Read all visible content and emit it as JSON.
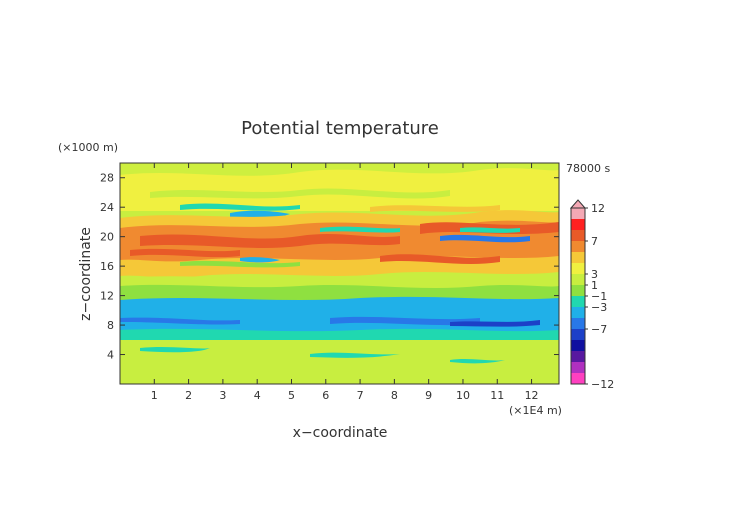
{
  "chart_data": {
    "type": "heatmap",
    "title": "Potential temperature",
    "xlabel": "x−coordinate",
    "ylabel": "z−coordinate",
    "x_unit": "(×1E4 m)",
    "y_unit": "(×1000 m)",
    "time_label": "78000 s",
    "xlim": [
      0,
      12.8
    ],
    "ylim": [
      0,
      30
    ],
    "x_ticks": [
      "1",
      "2",
      "3",
      "4",
      "5",
      "6",
      "7",
      "8",
      "9",
      "10",
      "11",
      "12"
    ],
    "y_ticks": [
      "4",
      "8",
      "12",
      "16",
      "20",
      "24",
      "28"
    ],
    "colorbar": {
      "labels": [
        "12",
        "7",
        "3",
        "1",
        "−1",
        "−3",
        "−7",
        "−12"
      ],
      "colors": [
        "#f4a8b4",
        "#ff2020",
        "#e85a28",
        "#f08a30",
        "#f5c838",
        "#f0f040",
        "#c8ee40",
        "#8fe040",
        "#20d8b0",
        "#20b0e8",
        "#2878e8",
        "#1c40c8",
        "#1010a0",
        "#5818a0",
        "#b030c0",
        "#ff40c0"
      ]
    },
    "bands": [
      {
        "z_range": [
          0,
          6
        ],
        "level": "−1 to 1 (green)"
      },
      {
        "z_range": [
          7,
          12
        ],
        "level": "−3 to −1 (blue)"
      },
      {
        "z_range": [
          12,
          15
        ],
        "level": "−1 to 1 (green)"
      },
      {
        "z_range": [
          15,
          24
        ],
        "level": "1 to 7 (orange/yellow)"
      },
      {
        "z_range": [
          24,
          30
        ],
        "level": "1 to 3 (yellow)"
      }
    ]
  }
}
